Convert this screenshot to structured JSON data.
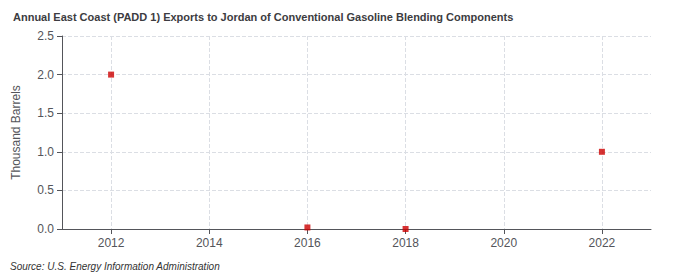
{
  "chart_data": {
    "type": "scatter",
    "title": "Annual East Coast (PADD 1) Exports to Jordan of Conventional Gasoline Blending Components",
    "ylabel": "Thousand Barrels",
    "annotations": [
      "Source: U.S. Energy Information Administration"
    ],
    "x": [
      2012,
      2016,
      2018,
      2022
    ],
    "values": [
      2.0,
      0.02,
      0.0,
      1.0
    ],
    "color": "#cc0000",
    "marker": "square",
    "xlim": [
      2011.0,
      2023.0
    ],
    "xticks": [
      2012,
      2014,
      2016,
      2018,
      2020,
      2022
    ],
    "ylim": [
      0.0,
      2.5
    ],
    "yticks": [
      {
        "value": 0.0,
        "label": "0.0"
      },
      0.5,
      {
        "value": 1.0,
        "label": "1.0"
      },
      1.5,
      {
        "value": 2.0,
        "label": "2.0"
      },
      2.5
    ],
    "grid": true
  }
}
